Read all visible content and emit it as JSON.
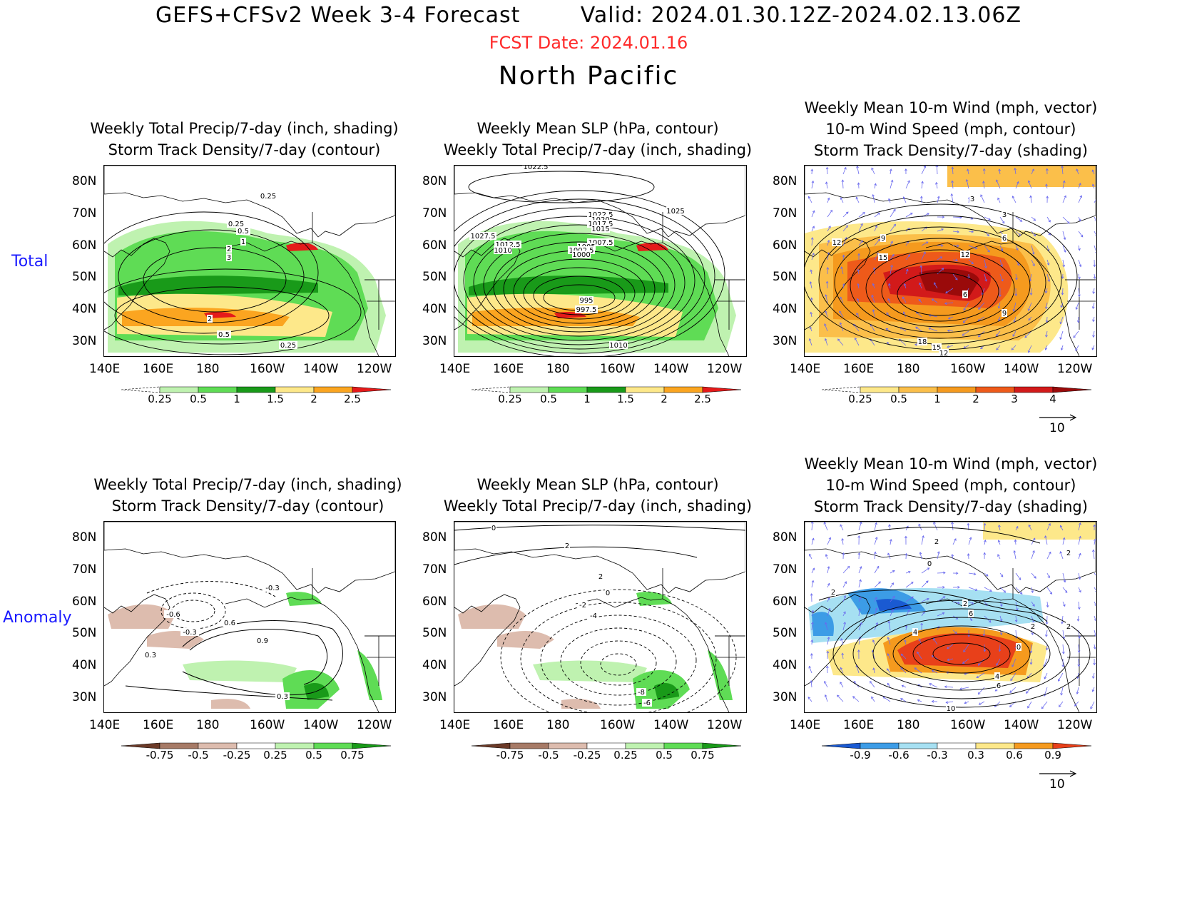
{
  "header": {
    "title": "GEFS+CFSv2 Week 3-4 Forecast",
    "valid": "Valid: 2024.01.30.12Z-2024.02.13.06Z",
    "fcst_date": "FCST Date: 2024.01.16",
    "region": "North Pacific"
  },
  "rows": {
    "total": "Total",
    "anomaly": "Anomaly"
  },
  "titles": {
    "p1": [
      "Weekly Total Precip/7-day (inch, shading)",
      "Storm Track Density/7-day (contour)"
    ],
    "p2": [
      "Weekly Mean SLP (hPa, contour)",
      "Weekly Total Precip/7-day (inch, shading)"
    ],
    "p3": [
      "Weekly Mean 10-m Wind (mph, vector)",
      "10-m Wind Speed (mph, contour)",
      "Storm Track Density/7-day (shading)"
    ]
  },
  "axes": {
    "lat": [
      "80N",
      "70N",
      "60N",
      "50N",
      "40N",
      "30N"
    ],
    "lon": [
      "140E",
      "160E",
      "180",
      "160W",
      "140W",
      "120W"
    ]
  },
  "colorbars": {
    "precip_total": {
      "labels": [
        "0.25",
        "0.5",
        "1",
        "1.5",
        "2",
        "2.5"
      ],
      "colors": [
        "#ffffff",
        "#bff2b0",
        "#5fdc55",
        "#199a19",
        "#fde88a",
        "#fba520",
        "#e51a1a"
      ]
    },
    "density_total": {
      "labels": [
        "0.25",
        "0.5",
        "1",
        "2",
        "3",
        "4"
      ],
      "colors": [
        "#ffffff",
        "#fde88a",
        "#fbbf4a",
        "#f59a1e",
        "#ee5a1a",
        "#d21a1a",
        "#9a0a0a"
      ]
    },
    "precip_anom": {
      "labels": [
        "-0.75",
        "-0.5",
        "-0.25",
        "0.25",
        "0.5",
        "0.75"
      ],
      "colors": [
        "#6b3a28",
        "#a67a66",
        "#ddbcae",
        "#ffffff",
        "#bff2b0",
        "#5fdc55",
        "#199a19"
      ]
    },
    "density_anom": {
      "labels": [
        "-0.9",
        "-0.6",
        "-0.3",
        "0.3",
        "0.6",
        "0.9"
      ],
      "colors": [
        "#1a5ad2",
        "#3c9ce6",
        "#a6e0f2",
        "#ffffff",
        "#fde88a",
        "#f59a1e",
        "#e8401a"
      ]
    }
  },
  "wind_ref": "10",
  "contour_labels": {
    "p1": [
      "0.25",
      "0.25",
      "0.5",
      "1",
      "2",
      "3",
      "2",
      "0.5",
      "0.25"
    ],
    "p2": [
      "1022.5",
      "1022.5",
      "1025",
      "1027.5",
      "1020",
      "1017.5",
      "1015",
      "1012.5",
      "1010",
      "1007.5",
      "1005",
      "1002.5",
      "1000",
      "995",
      "997.5",
      "1010"
    ],
    "p3": [
      "3",
      "3",
      "6",
      "9",
      "12",
      "12",
      "15",
      "6",
      "9",
      "18",
      "15",
      "12"
    ],
    "p4": [
      "-0.3",
      "-0.6",
      "-0.3",
      "0.6",
      "0.9",
      "0.3",
      "0.3"
    ],
    "p5": [
      "0",
      "2",
      "2",
      "0",
      "-2",
      "-4",
      "-8",
      "-6"
    ],
    "p6": [
      "2",
      "0",
      "2",
      "2",
      "2",
      "6",
      "4",
      "0",
      "2",
      "4",
      "6",
      "2",
      "10"
    ]
  },
  "colors": {
    "fcst_date": "#ff2a2a",
    "row_label": "#1a1aff",
    "wind_vector": "#6a6aee"
  }
}
